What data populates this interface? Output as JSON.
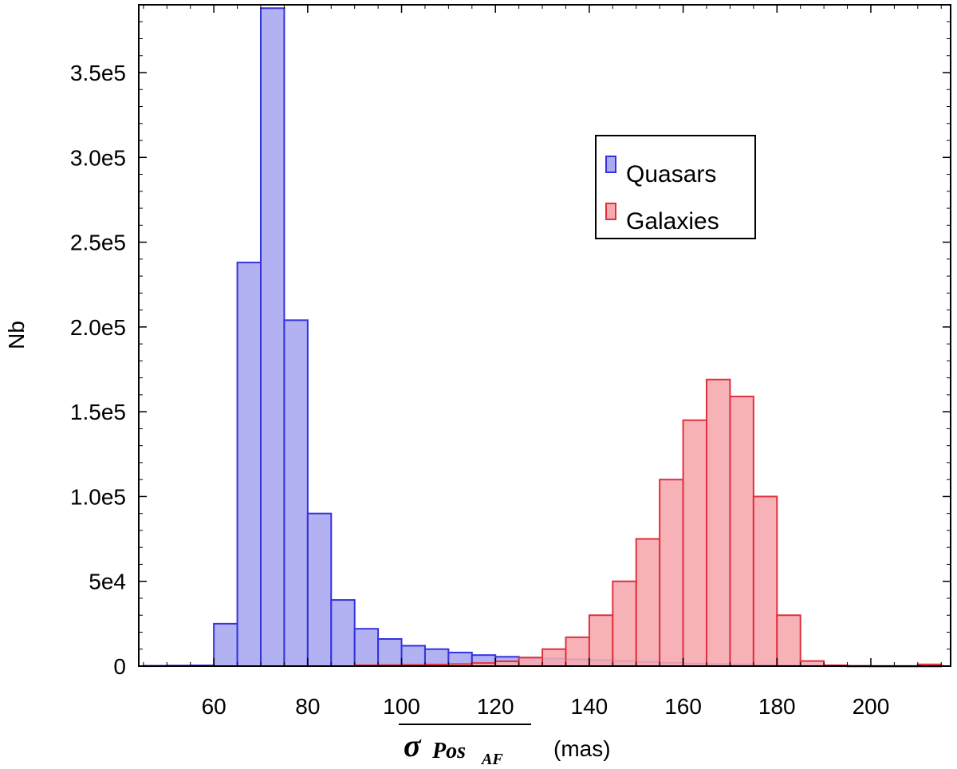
{
  "chart_data": {
    "type": "bar",
    "xlabel": {
      "symbol": "σ",
      "subscript": "Pos",
      "subsubscript": "AF",
      "unit": "(mas)"
    },
    "ylabel": "Nb",
    "xlim": [
      44,
      217
    ],
    "ylim": [
      0,
      390000
    ],
    "x_ticks": [
      60,
      80,
      100,
      120,
      140,
      160,
      180,
      200
    ],
    "x_tick_labels": [
      "60",
      "80",
      "100",
      "120",
      "140",
      "160",
      "180",
      "200"
    ],
    "y_ticks": [
      0,
      50000,
      100000,
      150000,
      200000,
      250000,
      300000,
      350000
    ],
    "y_tick_labels": [
      "0",
      "5e4",
      "1.0e5",
      "1.5e5",
      "2.0e5",
      "2.5e5",
      "3.0e5",
      "3.5e5"
    ],
    "bin_width": 5,
    "grid": false,
    "legend_position": "top-right",
    "series": [
      {
        "name": "Quasars",
        "color": "#3333dd",
        "fill": "#aaaaf2",
        "bins": [
          [
            45,
            200
          ],
          [
            50,
            300
          ],
          [
            55,
            400
          ],
          [
            60,
            25000
          ],
          [
            65,
            238000
          ],
          [
            70,
            388000
          ],
          [
            75,
            204000
          ],
          [
            80,
            90000
          ],
          [
            85,
            39000
          ],
          [
            90,
            22000
          ],
          [
            95,
            16000
          ],
          [
            100,
            12000
          ],
          [
            105,
            10000
          ],
          [
            110,
            8000
          ],
          [
            115,
            6500
          ],
          [
            120,
            5500
          ],
          [
            125,
            5000
          ],
          [
            130,
            4500
          ],
          [
            135,
            4000
          ],
          [
            140,
            3500
          ],
          [
            145,
            3000
          ],
          [
            150,
            2500
          ],
          [
            155,
            2000
          ],
          [
            160,
            1500
          ],
          [
            165,
            1200
          ],
          [
            170,
            1000
          ],
          [
            175,
            800
          ],
          [
            180,
            500
          ],
          [
            185,
            300
          ],
          [
            190,
            200
          ],
          [
            195,
            100
          ],
          [
            200,
            50
          ],
          [
            205,
            50
          ],
          [
            210,
            50
          ]
        ]
      },
      {
        "name": "Galaxies",
        "color": "#e0303e",
        "fill": "#f5aaaf",
        "bins": [
          [
            90,
            500
          ],
          [
            95,
            600
          ],
          [
            100,
            700
          ],
          [
            105,
            900
          ],
          [
            110,
            1200
          ],
          [
            115,
            1800
          ],
          [
            120,
            2800
          ],
          [
            125,
            5000
          ],
          [
            130,
            10000
          ],
          [
            135,
            17000
          ],
          [
            140,
            30000
          ],
          [
            145,
            50000
          ],
          [
            150,
            75000
          ],
          [
            155,
            110000
          ],
          [
            160,
            145000
          ],
          [
            165,
            169000
          ],
          [
            170,
            159000
          ],
          [
            175,
            100000
          ],
          [
            180,
            30000
          ],
          [
            185,
            3000
          ],
          [
            190,
            500
          ],
          [
            195,
            100
          ],
          [
            200,
            50
          ],
          [
            205,
            50
          ],
          [
            210,
            1000
          ]
        ]
      }
    ]
  }
}
